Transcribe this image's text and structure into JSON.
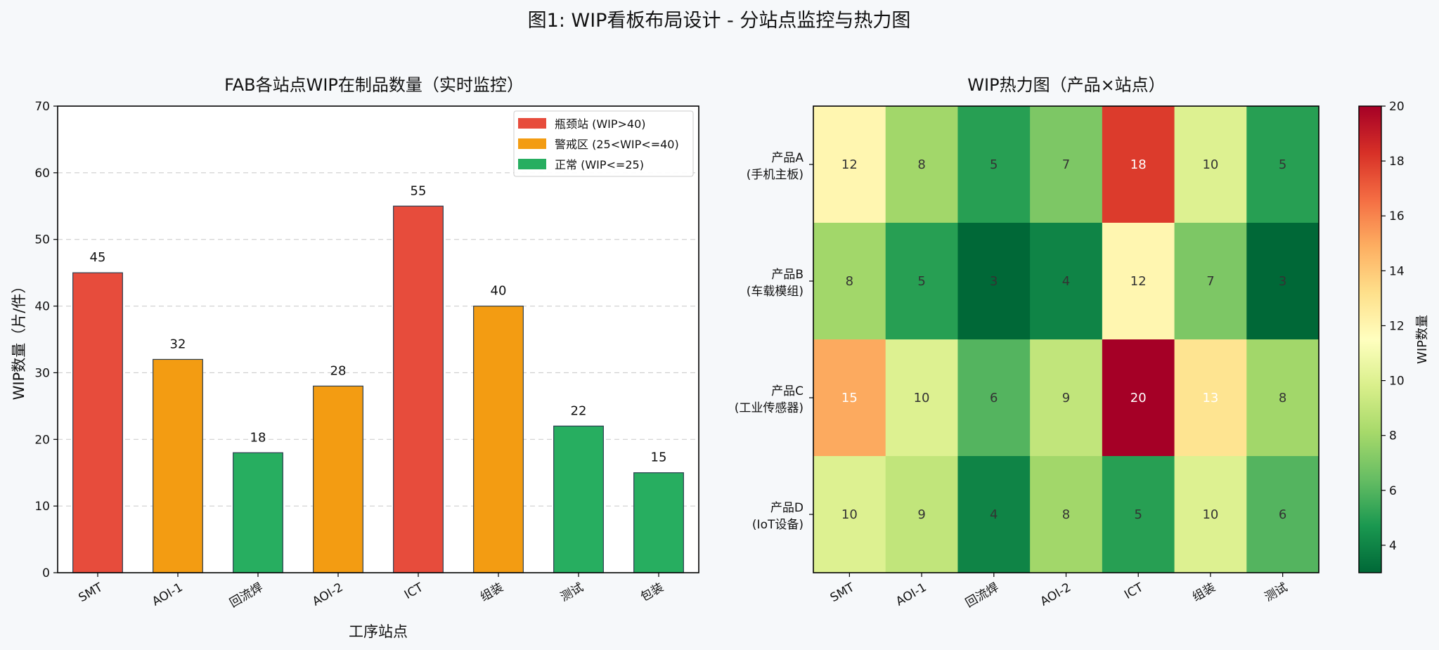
{
  "figure_title": "图1: WIP看板布局设计 - 分站点监控与热力图",
  "colors": {
    "bottleneck": "#e74c3c",
    "warning": "#f39c12",
    "normal": "#27ae60"
  },
  "chart_data": [
    {
      "type": "bar",
      "title": "FAB各站点WIP在制品数量（实时监控）",
      "xlabel": "工序站点",
      "ylabel": "WIP数量（片/件）",
      "ylim": [
        0,
        70
      ],
      "yticks": [
        0,
        10,
        20,
        30,
        40,
        50,
        60,
        70
      ],
      "grid": "y-dashed",
      "categories": [
        "SMT",
        "AOI-1",
        "回流焊",
        "AOI-2",
        "ICT",
        "组装",
        "测试",
        "包装"
      ],
      "values": [
        45,
        32,
        18,
        28,
        55,
        40,
        22,
        15
      ],
      "status": [
        "bottleneck",
        "warning",
        "normal",
        "warning",
        "bottleneck",
        "warning",
        "normal",
        "normal"
      ],
      "legend_position": "top-right",
      "legend": [
        {
          "key": "bottleneck",
          "label": "瓶颈站 (WIP>40)"
        },
        {
          "key": "warning",
          "label": "警戒区 (25<WIP<=40)"
        },
        {
          "key": "normal",
          "label": "正常 (WIP<=25)"
        }
      ]
    },
    {
      "type": "heatmap",
      "title": "WIP热力图（产品×站点）",
      "colormap": "RdYlGn_r",
      "vmin": 3,
      "vmax": 20,
      "columns": [
        "SMT",
        "AOI-1",
        "回流焊",
        "AOI-2",
        "ICT",
        "组装",
        "测试"
      ],
      "rows": [
        [
          "产品A",
          "(手机主板)"
        ],
        [
          "产品B",
          "(车载模组)"
        ],
        [
          "产品C",
          "(工业传感器)"
        ],
        [
          "产品D",
          "(IoT设备)"
        ]
      ],
      "values": [
        [
          12,
          8,
          5,
          7,
          18,
          10,
          5
        ],
        [
          8,
          5,
          3,
          4,
          12,
          7,
          3
        ],
        [
          15,
          10,
          6,
          9,
          20,
          13,
          8
        ],
        [
          10,
          9,
          4,
          8,
          5,
          10,
          6
        ]
      ],
      "colorbar_label": "WIP数量",
      "colorbar_ticks": [
        4,
        6,
        8,
        10,
        12,
        14,
        16,
        18,
        20
      ]
    }
  ]
}
